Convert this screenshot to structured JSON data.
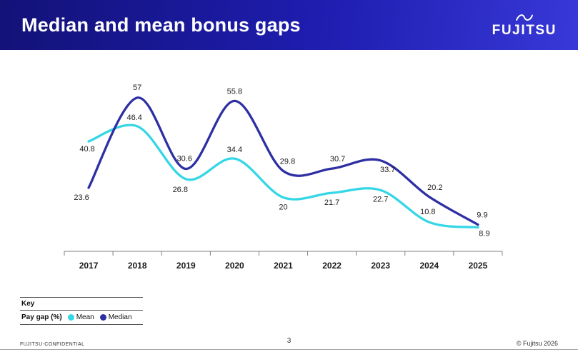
{
  "header": {
    "title": "Median and mean bonus gaps",
    "logo_text": "FUJITSU"
  },
  "chart_data": {
    "type": "line",
    "title": "Median and mean bonus gaps",
    "categories": [
      "2017",
      "2018",
      "2019",
      "2020",
      "2021",
      "2022",
      "2023",
      "2024",
      "2025"
    ],
    "series": [
      {
        "name": "Mean",
        "color": "#35D6E6",
        "values": [
          40.8,
          46.4,
          26.8,
          34.4,
          20,
          21.7,
          22.7,
          10.8,
          8.9
        ]
      },
      {
        "name": "Median",
        "color": "#2D2FA3",
        "values": [
          23.6,
          57,
          30.6,
          55.8,
          29.8,
          30.7,
          33.7,
          20.2,
          9.9
        ]
      }
    ],
    "xlabel": "",
    "ylabel": "Pay gap (%)",
    "ylim": [
      0,
      62
    ],
    "grid": false,
    "data_labels": true,
    "legend_position": "bottom-left"
  },
  "key": {
    "title": "Key",
    "label": "Pay gap (%)",
    "items": [
      {
        "name": "Mean",
        "color": "#35D6E6"
      },
      {
        "name": "Median",
        "color": "#2D2FA3"
      }
    ]
  },
  "footer": {
    "left": "FUJITSU-CONFIDENTIAL",
    "page": "3",
    "right": "© Fujitsu 2026"
  }
}
